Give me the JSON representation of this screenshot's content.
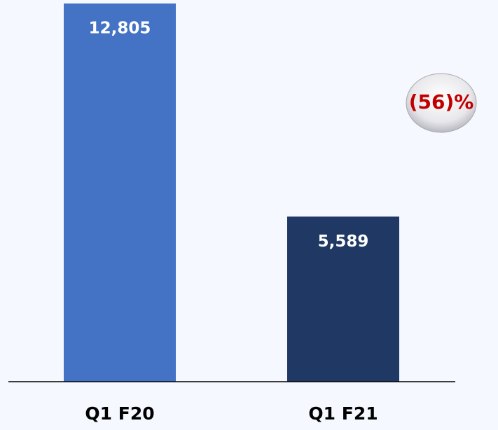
{
  "chart_data": {
    "type": "bar",
    "categories": [
      "Q1 F20",
      "Q1 F21"
    ],
    "values": [
      12805,
      5589
    ],
    "value_labels": [
      "12,805",
      "5,589"
    ],
    "colors": [
      "#4472c4",
      "#1f3864"
    ],
    "annotation": "(56)%"
  }
}
